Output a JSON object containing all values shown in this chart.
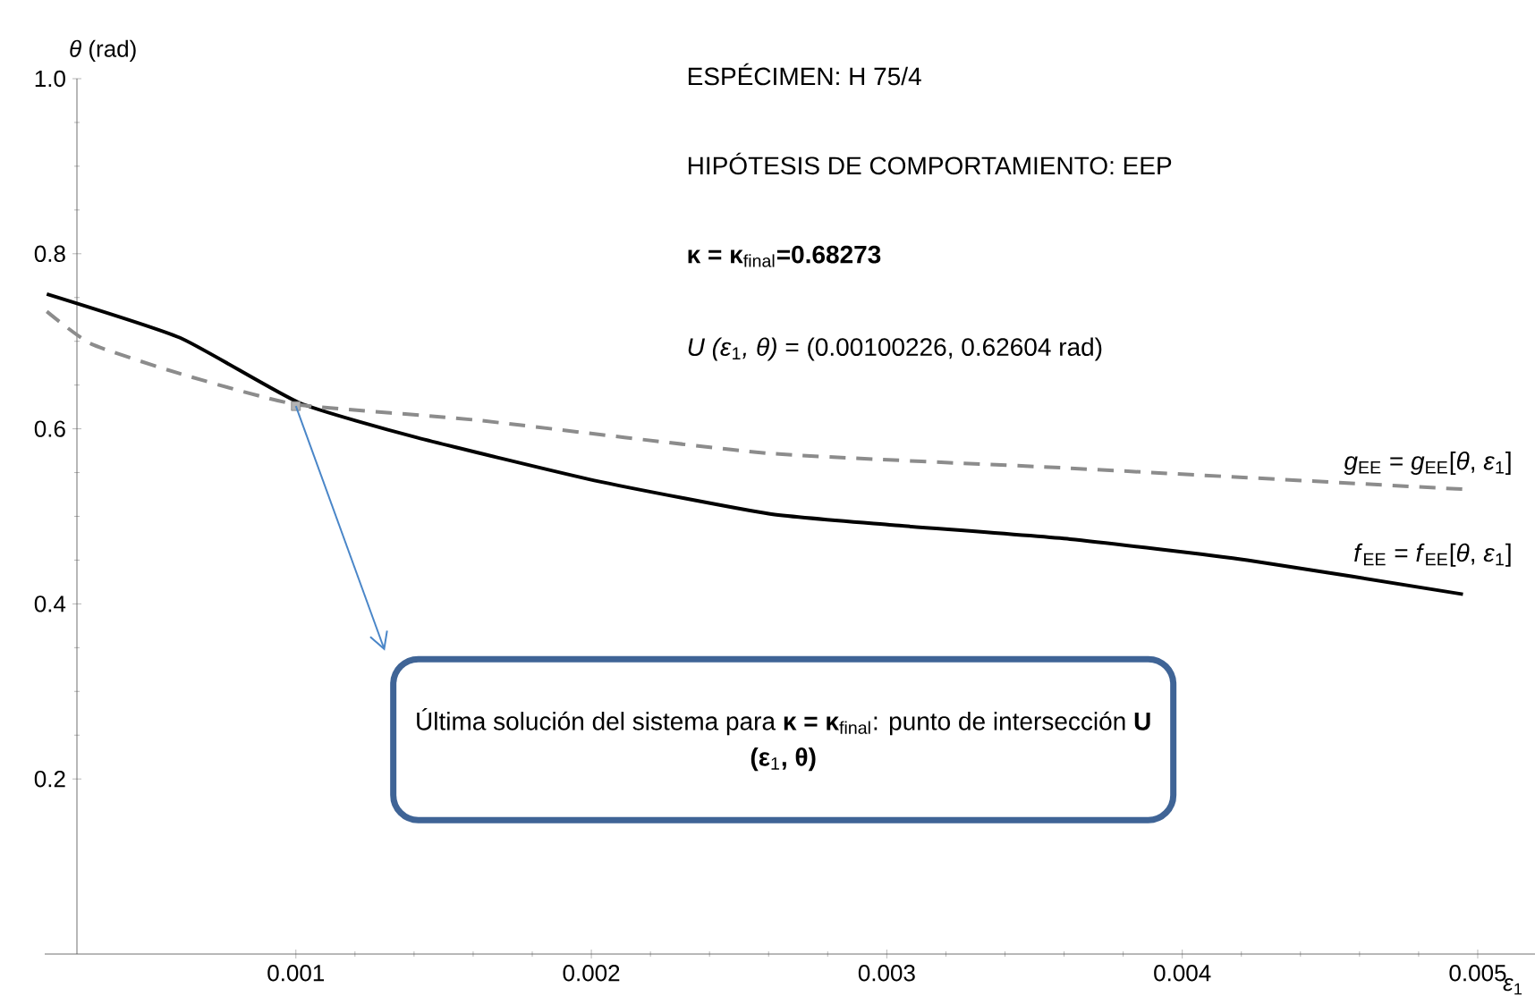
{
  "chart_data": {
    "type": "line",
    "xlabel": "*ε*$_{1}$",
    "ylabel": "*θ* (rad)",
    "xlim": [
      0.00015,
      0.0052
    ],
    "ylim": [
      0,
      1.0
    ],
    "xticks": [
      0.001,
      0.002,
      0.003,
      0.004,
      0.005
    ],
    "yticks": [
      0.2,
      0.4,
      0.6,
      0.8,
      {
        "value": 1.0,
        "label": "1.0"
      }
    ],
    "grid": false,
    "legend": false,
    "series": [
      {
        "name": "*f*$_{EE}$ = *f*$_{EE}$[*θ*, *ε*$_{1}$]",
        "color": "#000000",
        "line_style": "solid",
        "marker": "none",
        "x": [
          0.000157,
          0.000608,
          0.00101,
          0.00141,
          0.00201,
          0.0026,
          0.00302,
          0.00362,
          0.00422,
          0.00495
        ],
        "values": [
          0.754,
          0.704,
          0.63,
          0.59,
          0.541,
          0.503,
          0.49,
          0.474,
          0.45,
          0.411
        ]
      },
      {
        "name": "*g*$_{EE}$ = *g*$_{EE}$[*θ*, *ε*$_{1}$]",
        "color": "#8c8c8c",
        "line_style": "dashed",
        "marker": "none",
        "x": [
          0.000157,
          0.000307,
          0.000608,
          0.001,
          0.00161,
          0.0026,
          0.00362,
          0.00495
        ],
        "values": [
          0.734,
          0.697,
          0.663,
          0.628,
          0.61,
          0.572,
          0.555,
          0.531
        ]
      },
      {
        "type": "scatter",
        "color": "#808080",
        "marker": "square",
        "x": [
          0.001
        ],
        "values": [
          0.626
        ]
      }
    ],
    "annotations": [
      "ESPÉCIMEN: H 75/4",
      "HIPÓTESIS DE COMPORTAMIENTO: EEP",
      "**κ = κ**$_{final}$**=0.68273**",
      "*U (ε*$_{1}$*, θ)* = (0.00100226, 0.62604 rad)",
      "Última solución del sistema para **κ = κ**$_{final}$: punto de intersección **U (ε**$_{1}$**, θ)**"
    ]
  }
}
